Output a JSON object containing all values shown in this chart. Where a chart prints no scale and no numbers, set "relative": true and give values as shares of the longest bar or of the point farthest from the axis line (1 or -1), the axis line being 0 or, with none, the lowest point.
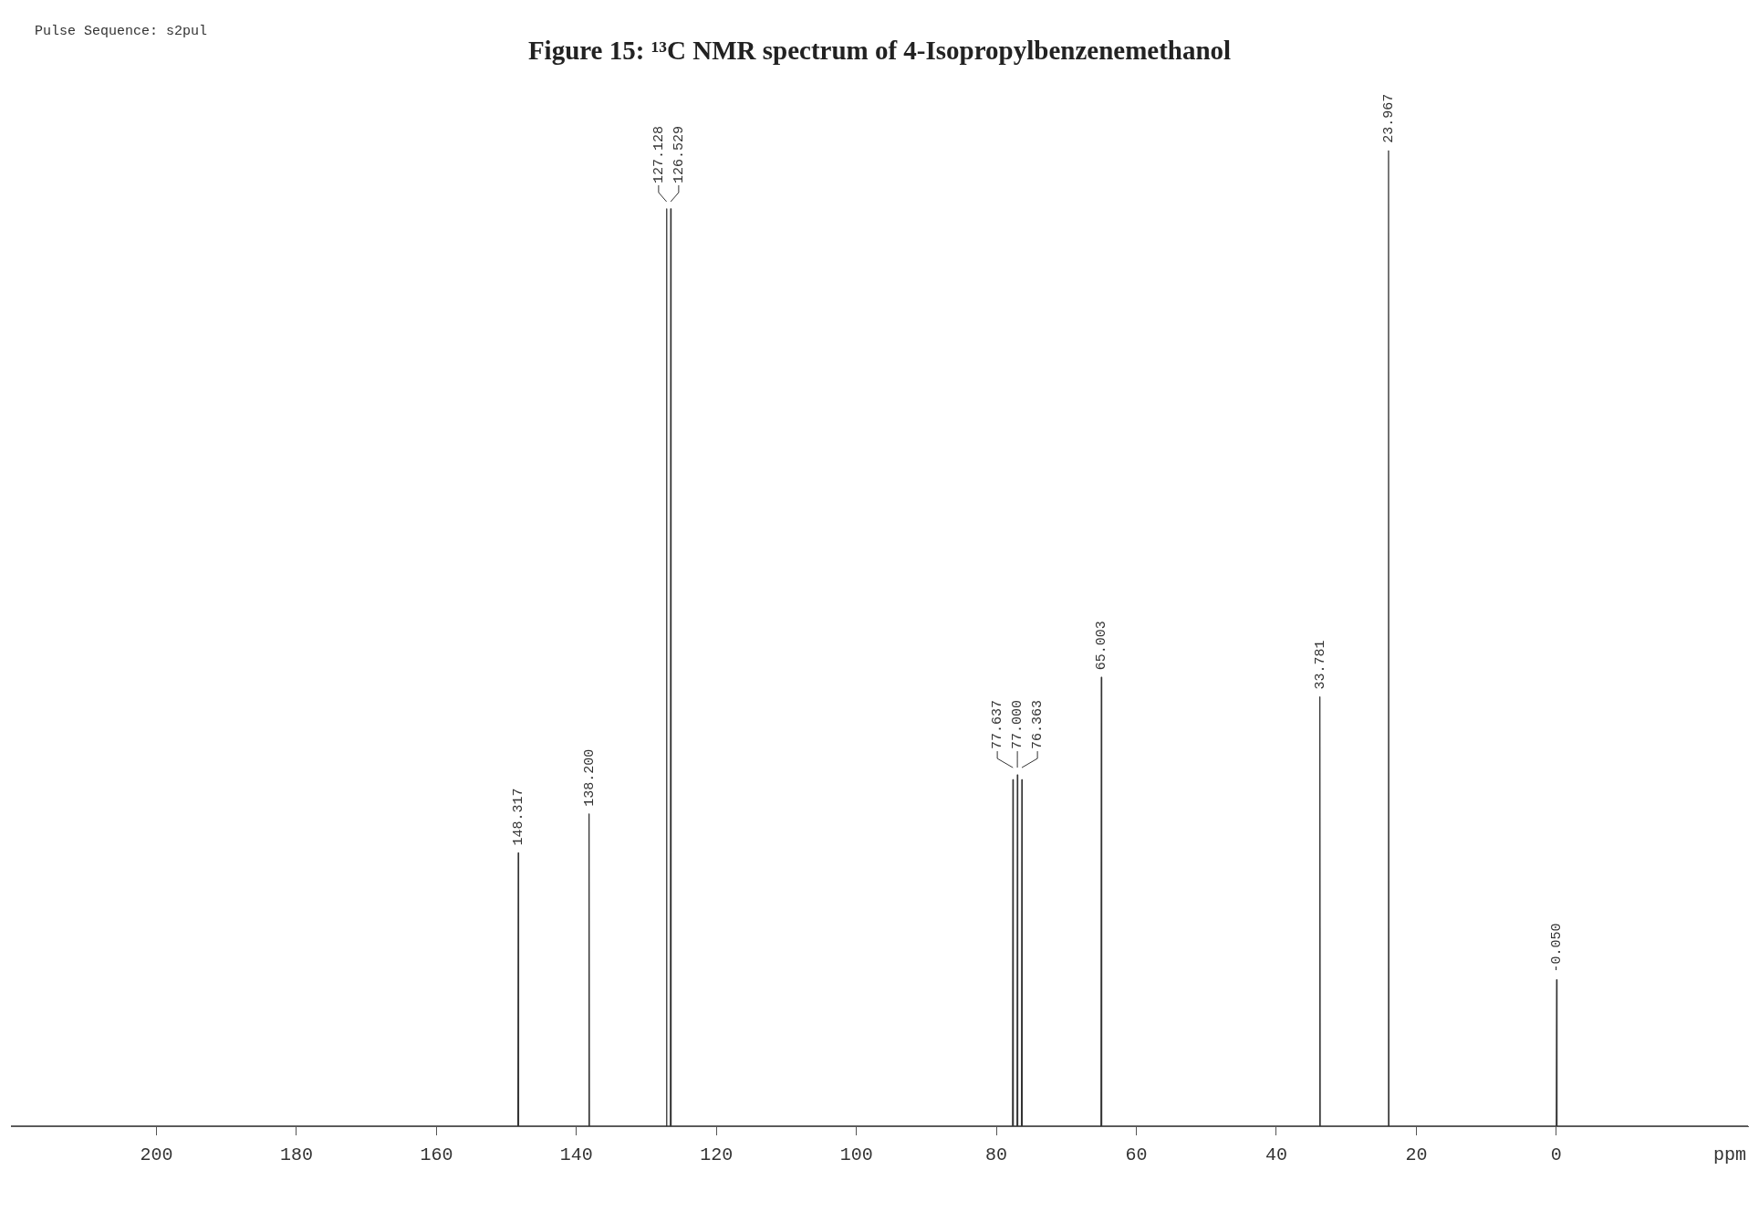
{
  "chart_data": {
    "type": "line",
    "title": "Figure 15: ¹³C NMR spectrum of 4-Isopropylbenzenemethanol",
    "xlabel": "ppm",
    "relative": true,
    "xlim": [
      220.8,
      -27.4
    ],
    "xticks": [
      200,
      180,
      160,
      140,
      120,
      100,
      80,
      60,
      40,
      20,
      0
    ],
    "marker": "none",
    "series": [
      {
        "color": "#333333",
        "x": [
          220.8,
          148.367,
          148.317,
          148.267,
          138.25,
          138.2,
          138.15,
          127.178,
          127.128,
          127.078,
          126.579,
          126.529,
          126.479,
          77.687,
          77.637,
          77.587,
          77.05,
          77.0,
          76.95,
          76.413,
          76.363,
          76.313,
          65.053,
          65.003,
          64.953,
          33.831,
          33.781,
          33.731,
          24.017,
          23.967,
          23.917,
          0.0,
          -0.05,
          -0.1,
          -27.4
        ],
        "values": [
          0,
          0,
          0.28,
          0,
          0,
          0.32,
          0,
          0,
          0.94,
          0,
          0,
          0.94,
          0,
          0,
          0.355,
          0,
          0,
          0.36,
          0,
          0,
          0.355,
          0,
          0,
          0.46,
          0,
          0,
          0.44,
          0,
          0,
          1,
          0,
          0,
          0.15,
          0,
          0
        ]
      }
    ],
    "annotations": [
      "Pulse Sequence: s2pul",
      {
        "text": "148.317",
        "x": 148.317,
        "y": 0.28
      },
      {
        "text": "138.200",
        "x": 138.2,
        "y": 0.32
      },
      {
        "text": "127.128",
        "x": 127.128,
        "y": 0.94
      },
      {
        "text": "126.529",
        "x": 126.529,
        "y": 0.94
      },
      {
        "text": "77.637",
        "x": 77.637,
        "y": 0.355
      },
      {
        "text": "77.000",
        "x": 77.0,
        "y": 0.36
      },
      {
        "text": "76.363",
        "x": 76.363,
        "y": 0.355
      },
      {
        "text": "65.003",
        "x": 65.003,
        "y": 0.46
      },
      {
        "text": "33.781",
        "x": 33.781,
        "y": 0.44
      },
      {
        "text": "23.967",
        "x": 23.967,
        "y": 1
      },
      {
        "text": "-0.050",
        "x": -0.05,
        "y": 0.15
      }
    ]
  }
}
